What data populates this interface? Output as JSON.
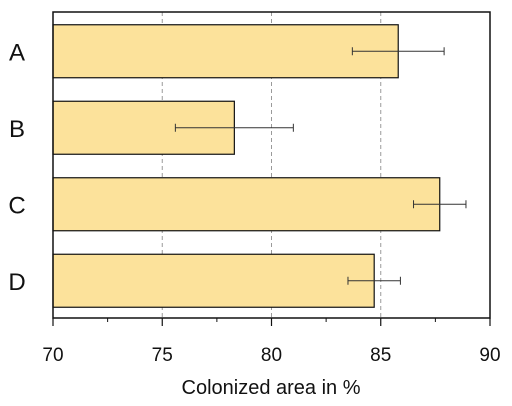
{
  "chart_data": {
    "type": "bar",
    "orientation": "horizontal",
    "categories": [
      "A",
      "B",
      "C",
      "D"
    ],
    "values": [
      85.8,
      78.3,
      87.7,
      84.7
    ],
    "error": [
      2.1,
      2.7,
      1.2,
      1.2
    ],
    "xlabel": "Colonized area in %",
    "xlim": [
      70,
      90
    ],
    "xticks": [
      70,
      75,
      80,
      85,
      90
    ],
    "grid": "vertical dashed",
    "colors": {
      "bar_fill": "#FCE29B",
      "bar_edge": "#111111",
      "grid": "#9a9a9a"
    }
  }
}
